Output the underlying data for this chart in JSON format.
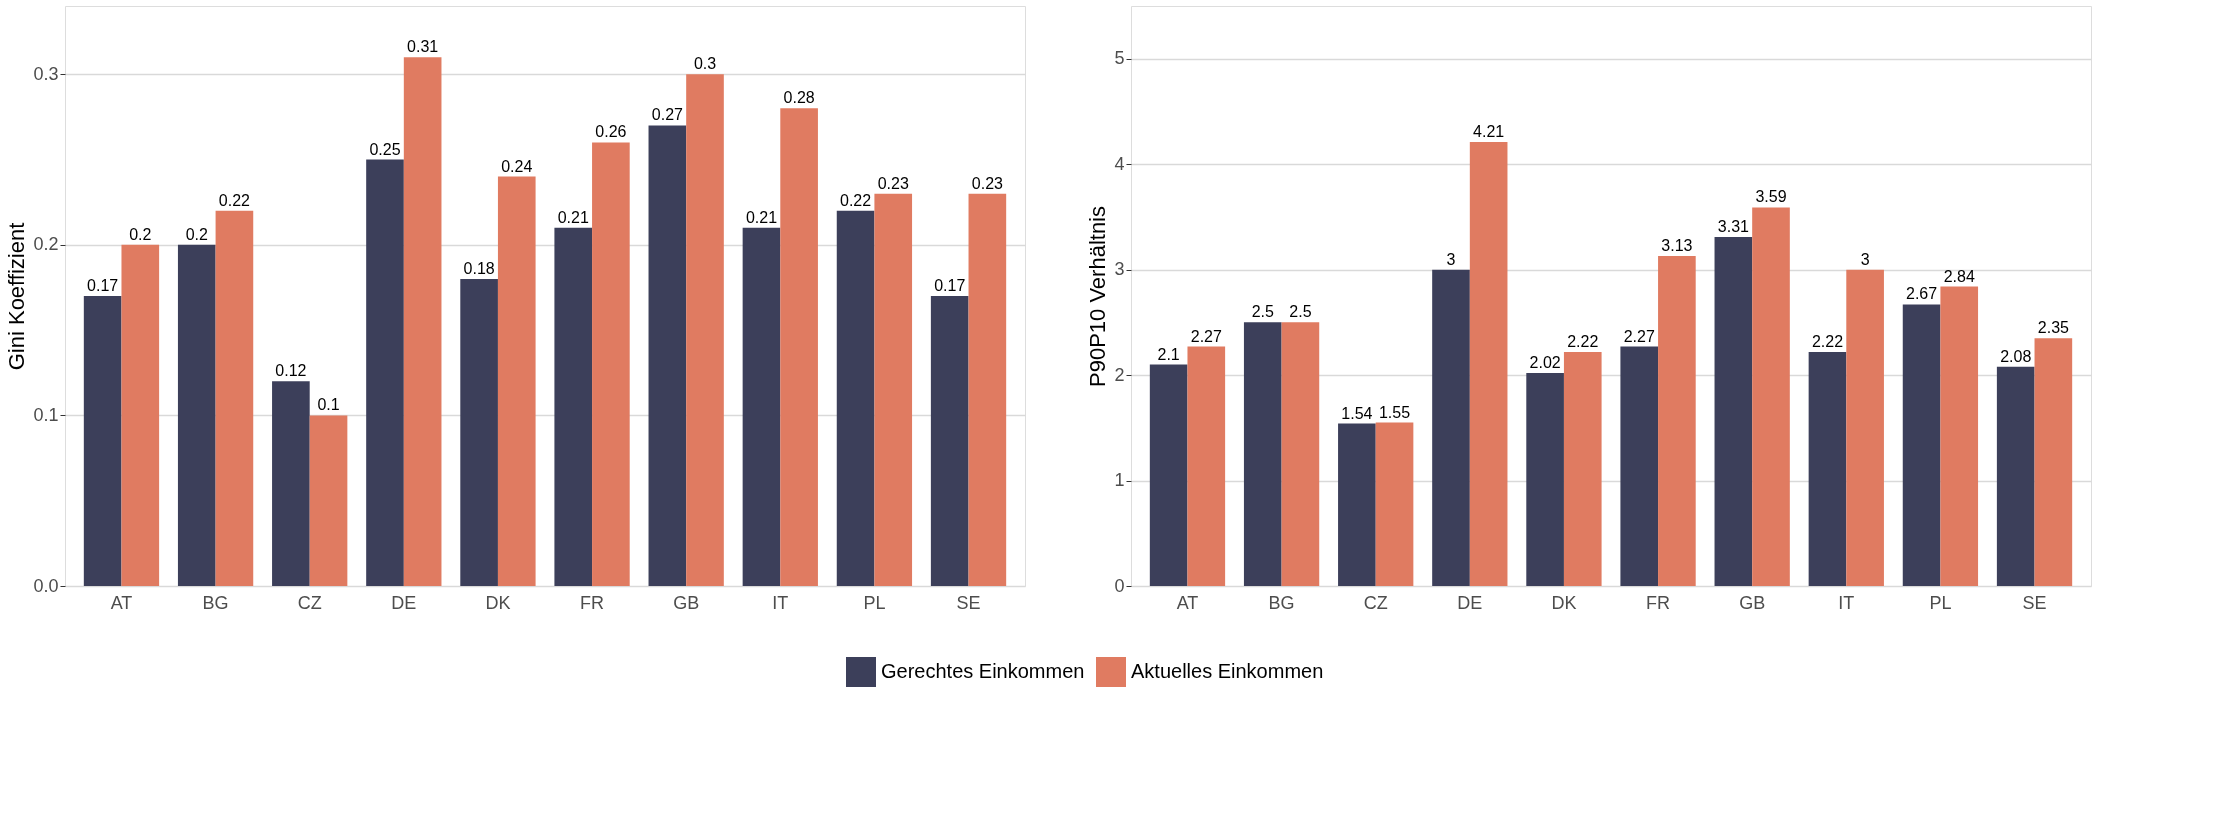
{
  "chart_data": [
    {
      "type": "bar",
      "ylabel": "Gini Koeffizient",
      "categories": [
        "AT",
        "BG",
        "CZ",
        "DE",
        "DK",
        "FR",
        "GB",
        "IT",
        "PL",
        "SE"
      ],
      "ylim": [
        0,
        0.34
      ],
      "yticks": [
        {
          "value": 0,
          "label": "0.0"
        },
        0.1,
        0.2,
        0.3
      ],
      "grid": "y",
      "legend": "bottom",
      "data_labels": true,
      "series": [
        {
          "name": "Gerechtes Einkommen",
          "color": "#3c3f5a",
          "values": [
            0.17,
            0.2,
            0.12,
            0.25,
            0.18,
            0.21,
            0.27,
            0.21,
            0.22,
            0.17
          ]
        },
        {
          "name": "Aktuelles Einkommen",
          "color": "#e07b61",
          "values": [
            0.2,
            0.22,
            0.1,
            0.31,
            0.24,
            0.26,
            0.3,
            0.28,
            0.23,
            0.23
          ]
        }
      ]
    },
    {
      "type": "bar",
      "ylabel": "P90P10 Verhältnis",
      "categories": [
        "AT",
        "BG",
        "CZ",
        "DE",
        "DK",
        "FR",
        "GB",
        "IT",
        "PL",
        "SE"
      ],
      "ylim": [
        0,
        5.5
      ],
      "yticks": [
        0,
        1,
        2,
        3,
        4,
        5
      ],
      "grid": "y",
      "legend": "bottom",
      "data_labels": true,
      "series": [
        {
          "name": "Gerechtes Einkommen",
          "color": "#3c3f5a",
          "values": [
            2.1,
            2.5,
            1.54,
            3,
            2.02,
            2.27,
            3.31,
            2.22,
            2.67,
            2.08
          ]
        },
        {
          "name": "Aktuelles Einkommen",
          "color": "#e07b61",
          "values": [
            2.27,
            2.5,
            1.55,
            4.21,
            2.22,
            3.13,
            3.59,
            3,
            2.84,
            2.35
          ]
        }
      ]
    }
  ]
}
